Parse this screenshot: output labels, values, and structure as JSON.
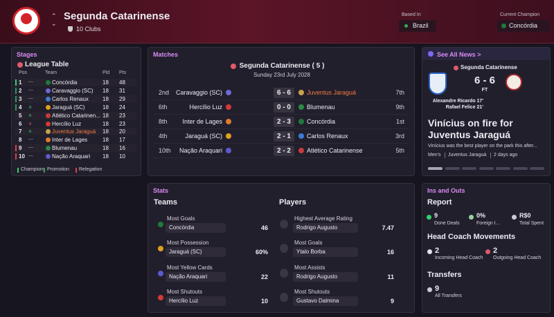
{
  "header": {
    "title": "Segunda Catarinense",
    "clubs": "10 Clubs",
    "based_in_label": "Based In",
    "based_in": "Brazil",
    "champion_label": "Current Champion",
    "champion": "Concórdia"
  },
  "stages": {
    "title": "Stages",
    "league_table": {
      "title": "League Table",
      "columns": [
        "Pos",
        "Team",
        "Pld",
        "Pts"
      ],
      "rows": [
        [
          1,
          "—",
          "Concórdia",
          18,
          48
        ],
        [
          2,
          "—",
          "Caravaggio (SC)",
          18,
          31
        ],
        [
          3,
          "—",
          "Carlos Renaux",
          18,
          29
        ],
        [
          4,
          "∧",
          "Jaraguá (SC)",
          18,
          24
        ],
        [
          5,
          "∧",
          "Atlético Catarinen...",
          18,
          23
        ],
        [
          6,
          "∨",
          "Hercílio Luz",
          18,
          23
        ],
        [
          7,
          "∧",
          "Juventus Jaraguá",
          18,
          20
        ],
        [
          8,
          "—",
          "Inter de Lages",
          18,
          17
        ],
        [
          9,
          "—",
          "Blumenau",
          18,
          16
        ],
        [
          10,
          "—",
          "Nação Araquari",
          18,
          10
        ]
      ],
      "legend": [
        "Champions",
        "Promotion",
        "Relegation"
      ]
    }
  },
  "matches": {
    "title": "Matches",
    "competition": "Segunda Catarinense ( 5 )",
    "date": "Sunday 23rd July 2028",
    "rows": [
      [
        "2nd",
        "Caravaggio (SC)",
        "6 - 6",
        "Juventus Jaraguá",
        "7th"
      ],
      [
        "6th",
        "Hercílio Luz",
        "0 - 0",
        "Blumenau",
        "9th"
      ],
      [
        "8th",
        "Inter de Lages",
        "2 - 3",
        "Concórdia",
        "1st"
      ],
      [
        "4th",
        "Jaraguá (SC)",
        "2 - 1",
        "Carlos Renaux",
        "3rd"
      ],
      [
        "10th",
        "Nação Araquari",
        "2 - 2",
        "Atlético Catarinense",
        "5th"
      ]
    ]
  },
  "news": {
    "link": "See All News >",
    "competition": "Segunda Catarinense",
    "score": "6 - 6",
    "status": "FT",
    "scorers": [
      "Alexandre Ricardo 17'",
      "Rafael Felice 21'"
    ],
    "headline": "Vinícius on fire for Juventus Jaraguá",
    "body": "Vinícius was the best player on the park this after...",
    "tags": [
      "Men's",
      "Juventus Jaraguá",
      "2 days ago"
    ]
  },
  "stats": {
    "title": "Stats",
    "teams": {
      "title": "Teams",
      "items": [
        {
          "label": "Most Goals",
          "name": "Concórdia",
          "value": 46
        },
        {
          "label": "Most Possession",
          "name": "Jaraguá (SC)",
          "value": "60%"
        },
        {
          "label": "Most Yellow Cards",
          "name": "Nação Araquari",
          "value": 22
        },
        {
          "label": "Most Shutouts",
          "name": "Hercílio Luz",
          "value": 10
        }
      ]
    },
    "players": {
      "title": "Players",
      "items": [
        {
          "label": "Highest Average Rating",
          "name": "Rodrigo Augusto",
          "value": 7.47
        },
        {
          "label": "Most Goals",
          "name": "Ytalo Borba",
          "value": 16
        },
        {
          "label": "Most Assists",
          "name": "Rodrigo Augusto",
          "value": 11
        },
        {
          "label": "Most Shutouts",
          "name": "Gustavo Dalmina",
          "value": 9
        }
      ]
    }
  },
  "ins_and_outs": {
    "title": "Ins and Outs",
    "report": {
      "title": "Report",
      "items": [
        {
          "value": 9,
          "label": "Done Deals"
        },
        {
          "value": "0%",
          "label": "Foreign I..."
        },
        {
          "value": "R$0",
          "label": "Total Spent"
        }
      ]
    },
    "head_coach": {
      "title": "Head Coach Movements",
      "items": [
        {
          "value": 2,
          "label": "Incoming Head Coach"
        },
        {
          "value": 2,
          "label": "Outgoing Head Coach"
        }
      ]
    },
    "transfers": {
      "title": "Transfers",
      "items": [
        {
          "value": 9,
          "label": "All Transfers"
        }
      ]
    }
  }
}
